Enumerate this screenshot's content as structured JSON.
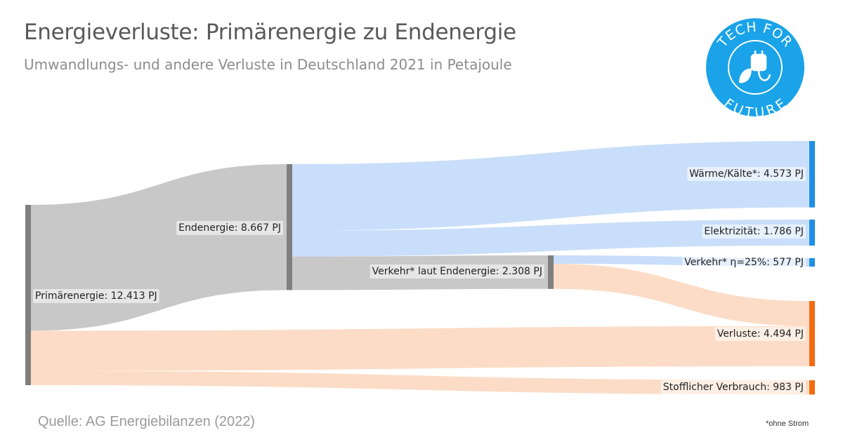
{
  "title": "Energieverluste: Primärenergie zu Endenergie",
  "subtitle": "Umwandlungs- und andere Verluste in Deutschland 2021 in Petajoule",
  "source": "Quelle: AG Energiebilanzen (2022)",
  "footnote": "*ohne Strom",
  "logo": {
    "top_text": "TECH FOR",
    "bottom_text": "FUTURE",
    "icon": "plug-leaf-icon",
    "color": "#1aa3e8"
  },
  "colors": {
    "blue": "#c9defa",
    "gray": "#c8c8c8",
    "orange": "#fcdcc6",
    "gray_node": "#7f7f7f",
    "blue_node": "#1e8fe6",
    "orange_node": "#f26b10"
  },
  "chart_data": {
    "type": "sankey",
    "unit": "PJ",
    "nodes": [
      {
        "id": "primaer",
        "label": "Primärenergie: 12.413 PJ",
        "value": 12413
      },
      {
        "id": "end",
        "label": "Endenergie: 8.667 PJ",
        "value": 8667
      },
      {
        "id": "verkehr_end",
        "label": "Verkehr* laut Endenergie: 2.308 PJ",
        "value": 2308
      },
      {
        "id": "waerme",
        "label": "Wärme/Kälte*: 4.573 PJ",
        "value": 4573
      },
      {
        "id": "elektr",
        "label": "Elektrizität: 1.786 PJ",
        "value": 1786
      },
      {
        "id": "verkehr_eta",
        "label": "Verkehr* η=25%: 577 PJ",
        "value": 577
      },
      {
        "id": "verluste",
        "label": "Verluste: 4.494 PJ",
        "value": 4494
      },
      {
        "id": "stofflich",
        "label": "Stofflicher Verbrauch: 983 PJ",
        "value": 983
      }
    ],
    "links": [
      {
        "source": "primaer",
        "target": "end",
        "value": 8667
      },
      {
        "source": "primaer",
        "target": "verluste",
        "value": 2763
      },
      {
        "source": "primaer",
        "target": "stofflich",
        "value": 983
      },
      {
        "source": "end",
        "target": "waerme",
        "value": 4573
      },
      {
        "source": "end",
        "target": "elektr",
        "value": 1786
      },
      {
        "source": "end",
        "target": "verkehr_end",
        "value": 2308
      },
      {
        "source": "verkehr_end",
        "target": "verkehr_eta",
        "value": 577
      },
      {
        "source": "verkehr_end",
        "target": "verluste",
        "value": 1731
      }
    ]
  }
}
